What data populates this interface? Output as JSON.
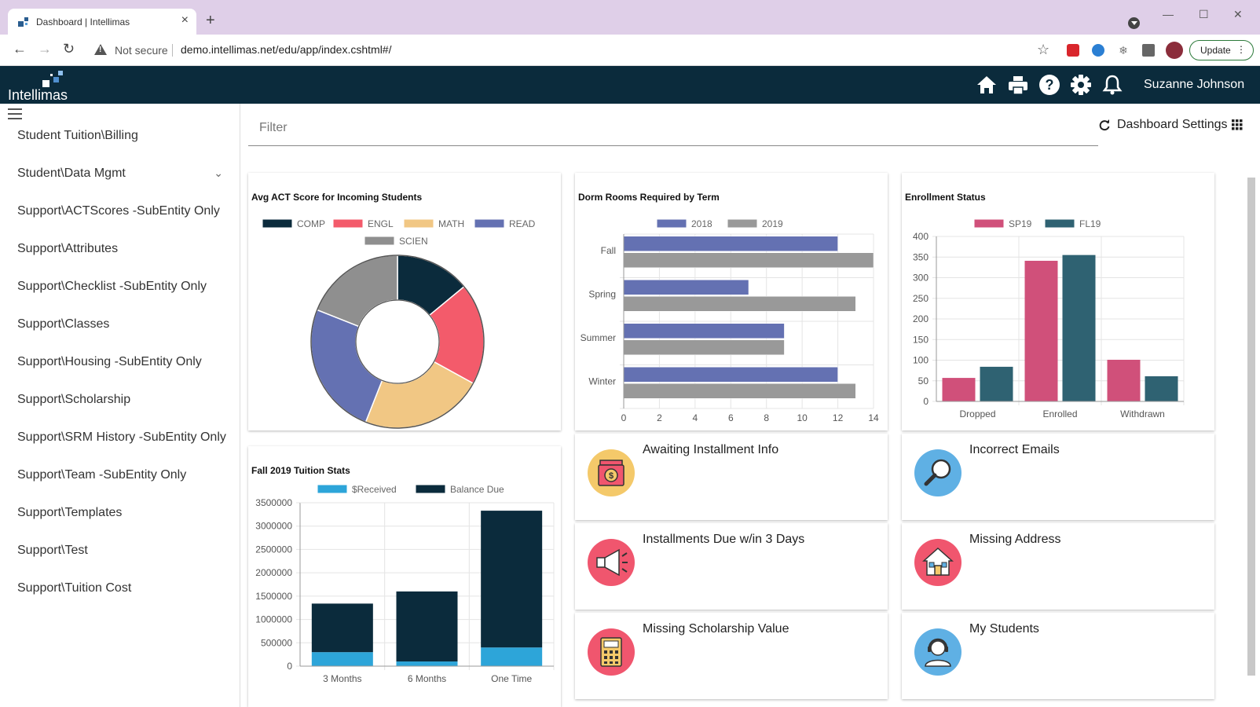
{
  "browser": {
    "tab_title": "Dashboard | Intellimas",
    "tab_close": "×",
    "new_tab": "+",
    "not_secure": "Not secure",
    "url": "demo.intellimas.net/edu/app/index.cshtml#/",
    "update_label": "Update",
    "window_minimize": "—",
    "window_maximize": "☐",
    "window_close": "✕"
  },
  "app": {
    "logo_text": "Intellimas",
    "user_name": "Suzanne Johnson",
    "header_icons": [
      "home-icon",
      "print-icon",
      "help-icon",
      "settings-icon",
      "bell-icon"
    ]
  },
  "sidebar": {
    "items": [
      {
        "label": "Student Tuition\\Billing"
      },
      {
        "label": "Student\\Data Mgmt",
        "has_children": true
      },
      {
        "label": "Support\\ACTScores -SubEntity Only"
      },
      {
        "label": "Support\\Attributes"
      },
      {
        "label": "Support\\Checklist -SubEntity Only"
      },
      {
        "label": "Support\\Classes"
      },
      {
        "label": "Support\\Housing -SubEntity Only"
      },
      {
        "label": "Support\\Scholarship"
      },
      {
        "label": "Support\\SRM History -SubEntity Only"
      },
      {
        "label": "Support\\Team -SubEntity Only"
      },
      {
        "label": "Support\\Templates"
      },
      {
        "label": "Support\\Test"
      },
      {
        "label": "Support\\Tuition Cost"
      }
    ]
  },
  "main": {
    "filter_placeholder": "Filter",
    "dashboard_settings": "Dashboard Settings",
    "tiles": [
      {
        "label": "Awaiting Installment Info",
        "icon": "money-register-icon",
        "icon_bg": "#f4c96a"
      },
      {
        "label": "Incorrect Emails",
        "icon": "magnifier-icon",
        "icon_bg": "#5fb0e4"
      },
      {
        "label": "Installments Due w/in 3 Days",
        "icon": "megaphone-icon",
        "icon_bg": "#f0566e"
      },
      {
        "label": "Missing Address",
        "icon": "house-icon",
        "icon_bg": "#f0566e"
      },
      {
        "label": "Missing Scholarship Value",
        "icon": "calculator-icon",
        "icon_bg": "#f0566e"
      },
      {
        "label": "My Students",
        "icon": "headset-user-icon",
        "icon_bg": "#5fb0e4"
      }
    ]
  },
  "colors": {
    "header_bg": "#0b2b3c",
    "comp": "#0b2b3c",
    "engl": "#f35b6b",
    "math": "#f1c784",
    "read": "#6471b2",
    "scien": "#8f8f8f",
    "y2018": "#6471b2",
    "y2019": "#999999",
    "sp19": "#d0507a",
    "fl19": "#2f6272",
    "received": "#2da5d9",
    "balance": "#0b2b3c"
  },
  "chart_data": [
    {
      "type": "pie",
      "title": "Avg ACT Score for Incoming Students",
      "donut": true,
      "labels": [
        "COMP",
        "ENGL",
        "MATH",
        "READ",
        "SCIEN"
      ],
      "values": [
        14,
        19,
        23,
        25,
        19
      ],
      "legend": "top"
    },
    {
      "type": "bar",
      "orientation": "horizontal",
      "title": "Dorm Rooms Required by Term",
      "categories": [
        "Fall",
        "Spring",
        "Summer",
        "Winter"
      ],
      "series": [
        {
          "name": "2018",
          "values": [
            12,
            7,
            9,
            12
          ]
        },
        {
          "name": "2019",
          "values": [
            14,
            13,
            9,
            13
          ]
        }
      ],
      "xlim": [
        0,
        14
      ],
      "xticks": [
        0,
        2,
        4,
        6,
        8,
        10,
        12,
        14
      ],
      "grid": true,
      "legend": "top"
    },
    {
      "type": "bar",
      "title": "Enrollment Status",
      "categories": [
        "Dropped",
        "Enrolled",
        "Withdrawn"
      ],
      "series": [
        {
          "name": "SP19",
          "values": [
            57,
            341,
            101
          ]
        },
        {
          "name": "FL19",
          "values": [
            84,
            355,
            61
          ]
        }
      ],
      "ylim": [
        0,
        400
      ],
      "yticks": [
        0,
        50,
        100,
        150,
        200,
        250,
        300,
        350,
        400
      ],
      "grid": true,
      "legend": "top"
    },
    {
      "type": "bar",
      "stacked": true,
      "title": "Fall 2019 Tuition Stats",
      "categories": [
        "3 Months",
        "6 Months",
        "One Time"
      ],
      "series": [
        {
          "name": "$Received",
          "values": [
            300000,
            100000,
            400000
          ]
        },
        {
          "name": "Balance Due",
          "values": [
            1040000,
            1500000,
            2930000
          ]
        }
      ],
      "ylim": [
        0,
        3500000
      ],
      "yticks": [
        0,
        500000,
        1000000,
        1500000,
        2000000,
        2500000,
        3000000,
        3500000
      ],
      "grid": true,
      "legend": "top"
    }
  ]
}
